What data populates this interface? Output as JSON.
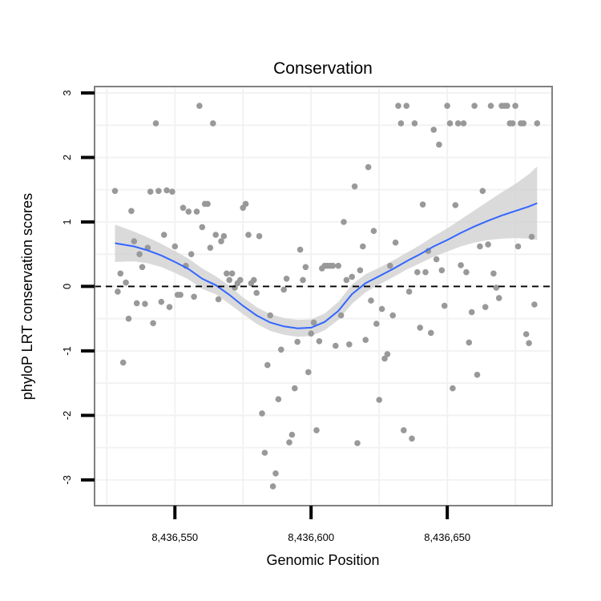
{
  "chart_data": {
    "type": "scatter",
    "title": "Conservation",
    "xlabel": "Genomic Position",
    "ylabel": "phyloP LRT conservation scores",
    "xlim": [
      8436520.5,
      8436688.5
    ],
    "ylim": [
      -3.4,
      3.1
    ],
    "x_ticks": [
      {
        "value": 8436550,
        "label": "8,436,550"
      },
      {
        "value": 8436600,
        "label": "8,436,600"
      },
      {
        "value": 8436650,
        "label": "8,436,650"
      }
    ],
    "y_ticks": [
      {
        "value": 3,
        "label": "3"
      },
      {
        "value": 2,
        "label": "2"
      },
      {
        "value": 1,
        "label": "1"
      },
      {
        "value": 0,
        "label": "0"
      },
      {
        "value": -1,
        "label": "-1"
      },
      {
        "value": -2,
        "label": "-2"
      },
      {
        "value": -3,
        "label": "-3"
      }
    ],
    "reference_line": {
      "y": 0,
      "style": "dashed"
    },
    "colors": {
      "points": "#999999",
      "smooth": "#3366ff",
      "ribbon": "#d4d4d4",
      "grid": "#f2f2f2",
      "border": "#808080"
    },
    "points": [
      [
        8436528,
        1.48
      ],
      [
        8436529,
        -0.08
      ],
      [
        8436530,
        0.2
      ],
      [
        8436531,
        -1.18
      ],
      [
        8436532,
        0.06
      ],
      [
        8436533,
        -0.5
      ],
      [
        8436534,
        1.17
      ],
      [
        8436535,
        0.7
      ],
      [
        8436536,
        -0.26
      ],
      [
        8436537,
        0.5
      ],
      [
        8436538,
        0.3
      ],
      [
        8436539,
        -0.27
      ],
      [
        8436540,
        0.6
      ],
      [
        8436541,
        1.47
      ],
      [
        8436542,
        -0.57
      ],
      [
        8436543,
        2.53
      ],
      [
        8436544,
        1.48
      ],
      [
        8436545,
        -0.24
      ],
      [
        8436546,
        0.8
      ],
      [
        8436547,
        1.49
      ],
      [
        8436548,
        -0.32
      ],
      [
        8436549,
        1.47
      ],
      [
        8436550,
        0.62
      ],
      [
        8436551,
        -0.13
      ],
      [
        8436552,
        -0.13
      ],
      [
        8436553,
        1.22
      ],
      [
        8436554,
        0.32
      ],
      [
        8436555,
        1.16
      ],
      [
        8436556,
        0.5
      ],
      [
        8436557,
        -0.16
      ],
      [
        8436558,
        1.16
      ],
      [
        8436559,
        2.8
      ],
      [
        8436560,
        0.92
      ],
      [
        8436561,
        1.28
      ],
      [
        8436562,
        1.28
      ],
      [
        8436563,
        0.6
      ],
      [
        8436564,
        2.53
      ],
      [
        8436565,
        0.8
      ],
      [
        8436566,
        -0.2
      ],
      [
        8436567,
        0.7
      ],
      [
        8436568,
        0.78
      ],
      [
        8436569,
        0.2
      ],
      [
        8436570,
        0.1
      ],
      [
        8436571,
        0.2
      ],
      [
        8436572,
        -0.02
      ],
      [
        8436573,
        0.05
      ],
      [
        8436574,
        0.1
      ],
      [
        8436575,
        1.22
      ],
      [
        8436576,
        1.28
      ],
      [
        8436577,
        0.8
      ],
      [
        8436578,
        0.05
      ],
      [
        8436579,
        0.1
      ],
      [
        8436580,
        -0.1
      ],
      [
        8436581,
        0.78
      ],
      [
        8436582,
        -1.97
      ],
      [
        8436583,
        -2.58
      ],
      [
        8436584,
        -1.22
      ],
      [
        8436585,
        -0.45
      ],
      [
        8436586,
        -3.1
      ],
      [
        8436587,
        -2.9
      ],
      [
        8436588,
        -1.75
      ],
      [
        8436589,
        -0.98
      ],
      [
        8436590,
        -0.05
      ],
      [
        8436591,
        0.12
      ],
      [
        8436592,
        -2.42
      ],
      [
        8436593,
        -2.3
      ],
      [
        8436594,
        -1.58
      ],
      [
        8436595,
        -0.86
      ],
      [
        8436596,
        0.57
      ],
      [
        8436597,
        0.1
      ],
      [
        8436598,
        0.3
      ],
      [
        8436599,
        -1.33
      ],
      [
        8436600,
        -0.73
      ],
      [
        8436601,
        -0.56
      ],
      [
        8436602,
        -2.23
      ],
      [
        8436603,
        -0.85
      ],
      [
        8436604,
        0.28
      ],
      [
        8436605,
        0.32
      ],
      [
        8436606,
        0.32
      ],
      [
        8436607,
        0.32
      ],
      [
        8436608,
        0.32
      ],
      [
        8436609,
        -0.92
      ],
      [
        8436610,
        0.32
      ],
      [
        8436611,
        -0.45
      ],
      [
        8436612,
        1.0
      ],
      [
        8436613,
        0.1
      ],
      [
        8436614,
        -0.9
      ],
      [
        8436615,
        0.15
      ],
      [
        8436616,
        1.55
      ],
      [
        8436617,
        -2.43
      ],
      [
        8436618,
        0.25
      ],
      [
        8436619,
        0.62
      ],
      [
        8436620,
        -0.83
      ],
      [
        8436621,
        1.85
      ],
      [
        8436622,
        -0.22
      ],
      [
        8436623,
        0.86
      ],
      [
        8436624,
        -0.58
      ],
      [
        8436625,
        -1.76
      ],
      [
        8436626,
        -0.35
      ],
      [
        8436627,
        -1.12
      ],
      [
        8436628,
        -1.05
      ],
      [
        8436629,
        0.32
      ],
      [
        8436630,
        -0.45
      ],
      [
        8436631,
        0.68
      ],
      [
        8436632,
        2.8
      ],
      [
        8436633,
        2.53
      ],
      [
        8436634,
        -2.23
      ],
      [
        8436635,
        2.8
      ],
      [
        8436636,
        -0.08
      ],
      [
        8436637,
        -2.36
      ],
      [
        8436638,
        2.53
      ],
      [
        8436639,
        0.22
      ],
      [
        8436640,
        -0.64
      ],
      [
        8436641,
        1.27
      ],
      [
        8436642,
        0.22
      ],
      [
        8436643,
        0.55
      ],
      [
        8436644,
        -0.72
      ],
      [
        8436645,
        2.43
      ],
      [
        8436646,
        0.42
      ],
      [
        8436647,
        2.2
      ],
      [
        8436648,
        0.25
      ],
      [
        8436649,
        -0.3
      ],
      [
        8436650,
        2.8
      ],
      [
        8436651,
        2.53
      ],
      [
        8436652,
        -1.58
      ],
      [
        8436653,
        1.26
      ],
      [
        8436654,
        2.53
      ],
      [
        8436655,
        0.33
      ],
      [
        8436656,
        2.53
      ],
      [
        8436657,
        0.22
      ],
      [
        8436658,
        -0.87
      ],
      [
        8436659,
        -0.4
      ],
      [
        8436660,
        2.8
      ],
      [
        8436661,
        -1.37
      ],
      [
        8436662,
        0.62
      ],
      [
        8436663,
        1.48
      ],
      [
        8436664,
        -0.32
      ],
      [
        8436665,
        0.65
      ],
      [
        8436666,
        2.8
      ],
      [
        8436667,
        0.2
      ],
      [
        8436668,
        -0.02
      ],
      [
        8436669,
        -0.18
      ],
      [
        8436670,
        2.8
      ],
      [
        8436671,
        2.8
      ],
      [
        8436672,
        2.8
      ],
      [
        8436673,
        2.53
      ],
      [
        8436674,
        2.53
      ],
      [
        8436675,
        2.8
      ],
      [
        8436676,
        0.62
      ],
      [
        8436677,
        2.53
      ],
      [
        8436678,
        2.53
      ],
      [
        8436679,
        -0.74
      ],
      [
        8436680,
        -0.88
      ],
      [
        8436681,
        0.77
      ],
      [
        8436682,
        -0.28
      ],
      [
        8436683,
        2.53
      ]
    ],
    "smooth": {
      "x": [
        8436528,
        8436535,
        8436540,
        8436545,
        8436550,
        8436555,
        8436560,
        8436565,
        8436570,
        8436575,
        8436580,
        8436585,
        8436590,
        8436595,
        8436600,
        8436605,
        8436610,
        8436615,
        8436620,
        8436625,
        8436630,
        8436635,
        8436640,
        8436645,
        8436650,
        8436655,
        8436660,
        8436665,
        8436670,
        8436675,
        8436680,
        8436683
      ],
      "y": [
        0.67,
        0.62,
        0.56,
        0.48,
        0.38,
        0.27,
        0.12,
        0.02,
        -0.13,
        -0.3,
        -0.45,
        -0.56,
        -0.62,
        -0.65,
        -0.64,
        -0.55,
        -0.38,
        -0.12,
        0.05,
        0.16,
        0.27,
        0.39,
        0.5,
        0.62,
        0.72,
        0.83,
        0.93,
        1.02,
        1.1,
        1.17,
        1.24,
        1.29
      ],
      "lower": [
        0.38,
        0.39,
        0.36,
        0.3,
        0.21,
        0.11,
        -0.04,
        -0.12,
        -0.27,
        -0.43,
        -0.58,
        -0.69,
        -0.75,
        -0.78,
        -0.77,
        -0.68,
        -0.52,
        -0.27,
        -0.09,
        0.03,
        0.14,
        0.26,
        0.36,
        0.46,
        0.54,
        0.62,
        0.68,
        0.72,
        0.74,
        0.75,
        0.74,
        0.72
      ],
      "upper": [
        0.96,
        0.85,
        0.76,
        0.66,
        0.55,
        0.43,
        0.28,
        0.16,
        0.01,
        -0.17,
        -0.32,
        -0.43,
        -0.49,
        -0.52,
        -0.51,
        -0.42,
        -0.24,
        0.03,
        0.19,
        0.29,
        0.4,
        0.52,
        0.64,
        0.78,
        0.9,
        1.04,
        1.18,
        1.32,
        1.46,
        1.59,
        1.74,
        1.86
      ]
    }
  }
}
